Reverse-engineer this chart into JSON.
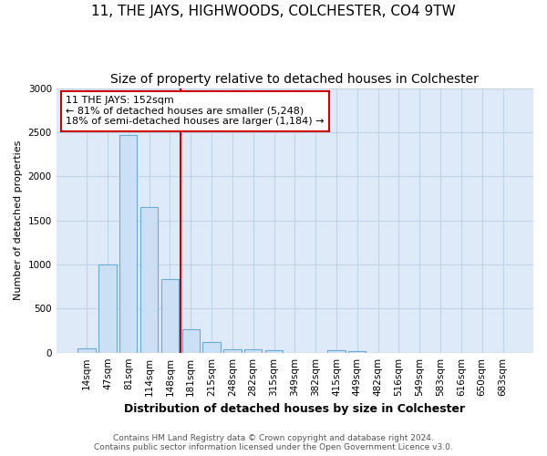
{
  "title": "11, THE JAYS, HIGHWOODS, COLCHESTER, CO4 9TW",
  "subtitle": "Size of property relative to detached houses in Colchester",
  "xlabel": "Distribution of detached houses by size in Colchester",
  "ylabel": "Number of detached properties",
  "bar_labels": [
    "14sqm",
    "47sqm",
    "81sqm",
    "114sqm",
    "148sqm",
    "181sqm",
    "215sqm",
    "248sqm",
    "282sqm",
    "315sqm",
    "349sqm",
    "382sqm",
    "415sqm",
    "449sqm",
    "482sqm",
    "516sqm",
    "549sqm",
    "583sqm",
    "616sqm",
    "650sqm",
    "683sqm"
  ],
  "bar_values": [
    50,
    1000,
    2470,
    1650,
    830,
    270,
    125,
    42,
    42,
    30,
    0,
    0,
    30,
    15,
    0,
    0,
    0,
    0,
    0,
    0,
    0
  ],
  "bar_color": "#cce0f5",
  "bar_edgecolor": "#6aaad4",
  "grid_color": "#c0d4e8",
  "background_color": "#deeaf8",
  "vline_color": "#cc0000",
  "annotation_text": "11 THE JAYS: 152sqm\n← 81% of detached houses are smaller (5,248)\n18% of semi-detached houses are larger (1,184) →",
  "annotation_box_facecolor": "#ffffff",
  "annotation_box_edgecolor": "#cc0000",
  "ylim": [
    0,
    3000
  ],
  "yticks": [
    0,
    500,
    1000,
    1500,
    2000,
    2500,
    3000
  ],
  "footer_line1": "Contains HM Land Registry data © Crown copyright and database right 2024.",
  "footer_line2": "Contains public sector information licensed under the Open Government Licence v3.0.",
  "title_fontsize": 11,
  "subtitle_fontsize": 10,
  "xlabel_fontsize": 9,
  "ylabel_fontsize": 8,
  "tick_fontsize": 7.5,
  "annotation_fontsize": 8,
  "footer_fontsize": 6.5
}
